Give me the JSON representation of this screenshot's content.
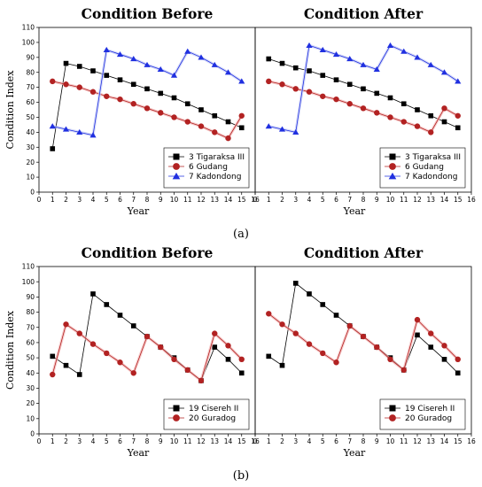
{
  "chart_data": [
    {
      "type": "line",
      "title": "Condition Before",
      "xlabel": "Year",
      "ylabel": "Condition Index",
      "xlim": [
        0,
        16
      ],
      "ylim": [
        0,
        110
      ],
      "xticks": [
        0,
        1,
        2,
        3,
        4,
        5,
        6,
        7,
        8,
        9,
        10,
        11,
        12,
        13,
        14,
        15,
        16
      ],
      "yticks": [
        0,
        10,
        20,
        30,
        40,
        50,
        60,
        70,
        80,
        90,
        100,
        110
      ],
      "legend_position": "bottom-right",
      "series": [
        {
          "name": "3 Tigaraksa III",
          "marker": "square",
          "color": "#000000",
          "x": [
            1,
            2,
            3,
            4,
            5,
            6,
            7,
            8,
            9,
            10,
            11,
            12,
            13,
            14,
            15
          ],
          "y": [
            29,
            86,
            84,
            81,
            78,
            75,
            72,
            69,
            66,
            63,
            59,
            55,
            51,
            47,
            43
          ]
        },
        {
          "name": "6 Gudang",
          "marker": "circle",
          "color": "#b22222",
          "x": [
            1,
            2,
            3,
            4,
            5,
            6,
            7,
            8,
            9,
            10,
            11,
            12,
            13,
            14,
            15
          ],
          "y": [
            74,
            72,
            70,
            67,
            64,
            62,
            59,
            56,
            53,
            50,
            47,
            44,
            40,
            36,
            51
          ]
        },
        {
          "name": "7 Kadondong",
          "marker": "triangle",
          "color": "#2030e0",
          "x": [
            1,
            2,
            3,
            4,
            5,
            6,
            7,
            8,
            9,
            10,
            11,
            12,
            13,
            14,
            15
          ],
          "y": [
            44,
            42,
            40,
            38,
            95,
            92,
            89,
            85,
            82,
            78,
            94,
            90,
            85,
            80,
            74
          ]
        }
      ]
    },
    {
      "type": "line",
      "title": "Condition After",
      "xlabel": "Year",
      "ylabel": "",
      "xlim": [
        0,
        16
      ],
      "ylim": [
        0,
        110
      ],
      "xticks": [
        0,
        1,
        2,
        3,
        4,
        5,
        6,
        7,
        8,
        9,
        10,
        11,
        12,
        13,
        14,
        15,
        16
      ],
      "yticks": [],
      "legend_position": "bottom-right",
      "series": [
        {
          "name": "3 Tigaraksa III",
          "marker": "square",
          "color": "#000000",
          "x": [
            1,
            2,
            3,
            4,
            5,
            6,
            7,
            8,
            9,
            10,
            11,
            12,
            13,
            14,
            15
          ],
          "y": [
            89,
            86,
            83,
            81,
            78,
            75,
            72,
            69,
            66,
            63,
            59,
            55,
            51,
            47,
            43
          ]
        },
        {
          "name": "6 Gudang",
          "marker": "circle",
          "color": "#b22222",
          "x": [
            1,
            2,
            3,
            4,
            5,
            6,
            7,
            8,
            9,
            10,
            11,
            12,
            13,
            14,
            15
          ],
          "y": [
            74,
            72,
            69,
            67,
            64,
            62,
            59,
            56,
            53,
            50,
            47,
            44,
            40,
            56,
            51
          ]
        },
        {
          "name": "7 Kadondong",
          "marker": "triangle",
          "color": "#2030e0",
          "x": [
            1,
            2,
            3,
            4,
            5,
            6,
            7,
            8,
            9,
            10,
            11,
            12,
            13,
            14,
            15
          ],
          "y": [
            44,
            42,
            40,
            98,
            95,
            92,
            89,
            85,
            82,
            98,
            94,
            90,
            85,
            80,
            74
          ]
        }
      ]
    },
    {
      "type": "line",
      "title": "Condition Before",
      "xlabel": "Year",
      "ylabel": "Condition Index",
      "xlim": [
        0,
        16
      ],
      "ylim": [
        0,
        110
      ],
      "xticks": [
        0,
        1,
        2,
        3,
        4,
        5,
        6,
        7,
        8,
        9,
        10,
        11,
        12,
        13,
        14,
        15,
        16
      ],
      "yticks": [
        0,
        10,
        20,
        30,
        40,
        50,
        60,
        70,
        80,
        90,
        100,
        110
      ],
      "legend_position": "bottom-right",
      "series": [
        {
          "name": "19 Cisereh II",
          "marker": "square",
          "color": "#000000",
          "x": [
            1,
            2,
            3,
            4,
            5,
            6,
            7,
            8,
            9,
            10,
            11,
            12,
            13,
            14,
            15
          ],
          "y": [
            51,
            45,
            39,
            92,
            85,
            78,
            71,
            64,
            57,
            50,
            42,
            35,
            57,
            49,
            40
          ]
        },
        {
          "name": "20 Guradog",
          "marker": "circle",
          "color": "#b22222",
          "x": [
            1,
            2,
            3,
            4,
            5,
            6,
            7,
            8,
            9,
            10,
            11,
            12,
            13,
            14,
            15
          ],
          "y": [
            39,
            72,
            66,
            59,
            53,
            47,
            40,
            64,
            57,
            49,
            42,
            35,
            66,
            58,
            49
          ]
        }
      ]
    },
    {
      "type": "line",
      "title": "Condition After",
      "xlabel": "Year",
      "ylabel": "",
      "xlim": [
        0,
        16
      ],
      "ylim": [
        0,
        110
      ],
      "xticks": [
        0,
        1,
        2,
        3,
        4,
        5,
        6,
        7,
        8,
        9,
        10,
        11,
        12,
        13,
        14,
        15,
        16
      ],
      "yticks": [],
      "legend_position": "bottom-right",
      "series": [
        {
          "name": "19 Cisereh II",
          "marker": "square",
          "color": "#000000",
          "x": [
            1,
            2,
            3,
            4,
            5,
            6,
            7,
            8,
            9,
            10,
            11,
            12,
            13,
            14,
            15
          ],
          "y": [
            51,
            45,
            99,
            92,
            85,
            78,
            71,
            64,
            57,
            50,
            42,
            65,
            57,
            49,
            40
          ]
        },
        {
          "name": "20 Guradog",
          "marker": "circle",
          "color": "#b22222",
          "x": [
            1,
            2,
            3,
            4,
            5,
            6,
            7,
            8,
            9,
            10,
            11,
            12,
            13,
            14,
            15
          ],
          "y": [
            79,
            72,
            66,
            59,
            53,
            47,
            71,
            64,
            57,
            49,
            42,
            75,
            66,
            58,
            49
          ]
        }
      ]
    }
  ],
  "figure_labels": {
    "a": "(a)",
    "b": "(b)"
  }
}
